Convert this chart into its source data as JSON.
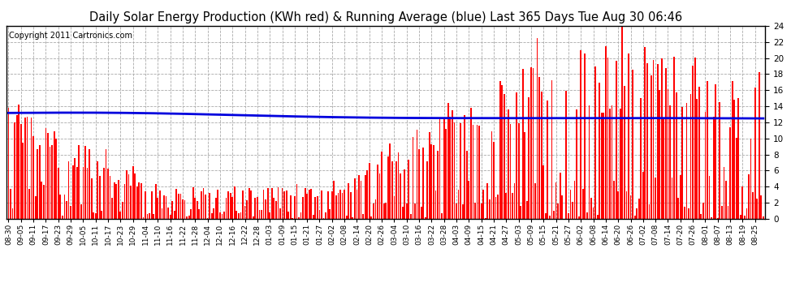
{
  "title": "Daily Solar Energy Production (KWh red) & Running Average (blue) Last 365 Days Tue Aug 30 06:46",
  "copyright": "Copyright 2011 Cartronics.com",
  "ylim": [
    0.0,
    24.0
  ],
  "yticks": [
    0.0,
    2.0,
    4.0,
    6.0,
    8.0,
    10.0,
    12.0,
    14.0,
    16.0,
    18.0,
    20.0,
    22.0,
    24.0
  ],
  "bar_color": "#ff0000",
  "avg_color": "#0000dd",
  "bg_color": "#ffffff",
  "grid_color": "#aaaaaa",
  "title_fontsize": 10.5,
  "copyright_fontsize": 7,
  "avg_linewidth": 2.0,
  "dates_shown": [
    "08-30",
    "09-05",
    "09-11",
    "09-17",
    "09-23",
    "09-29",
    "10-05",
    "10-11",
    "10-17",
    "10-23",
    "10-29",
    "11-04",
    "11-10",
    "11-16",
    "11-22",
    "11-28",
    "12-04",
    "12-10",
    "12-16",
    "12-22",
    "12-28",
    "01-03",
    "01-09",
    "01-15",
    "01-21",
    "01-27",
    "02-02",
    "02-08",
    "02-14",
    "02-20",
    "02-26",
    "03-04",
    "03-10",
    "03-16",
    "03-22",
    "03-28",
    "04-03",
    "04-09",
    "04-15",
    "04-21",
    "04-27",
    "05-03",
    "05-09",
    "05-15",
    "05-21",
    "05-27",
    "06-02",
    "06-08",
    "06-14",
    "06-20",
    "06-26",
    "07-02",
    "07-08",
    "07-14",
    "07-20",
    "07-26",
    "08-01",
    "08-07",
    "08-13",
    "08-19",
    "08-25"
  ]
}
